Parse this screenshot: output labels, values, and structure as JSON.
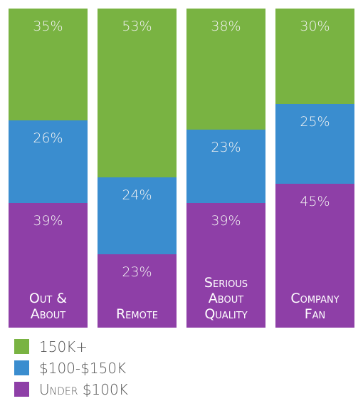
{
  "chart_data": {
    "type": "bar",
    "stacked": true,
    "categories": [
      "Out & About",
      "Remote",
      "Serious About Quality",
      "Company Fan"
    ],
    "series": [
      {
        "name": "Under $100K",
        "color": "#8e3fa7",
        "values": [
          39,
          23,
          39,
          45
        ],
        "value_labels": [
          "39%",
          "23%",
          "39%",
          "45%"
        ]
      },
      {
        "name": "$100-$150K",
        "color": "#3a8dcf",
        "values": [
          26,
          24,
          23,
          25
        ],
        "value_labels": [
          "26%",
          "24%",
          "23%",
          "25%"
        ]
      },
      {
        "name": "150K+",
        "color": "#79b342",
        "values": [
          35,
          53,
          38,
          30
        ],
        "value_labels": [
          "35%",
          "53%",
          "38%",
          "30%"
        ]
      }
    ]
  }
}
